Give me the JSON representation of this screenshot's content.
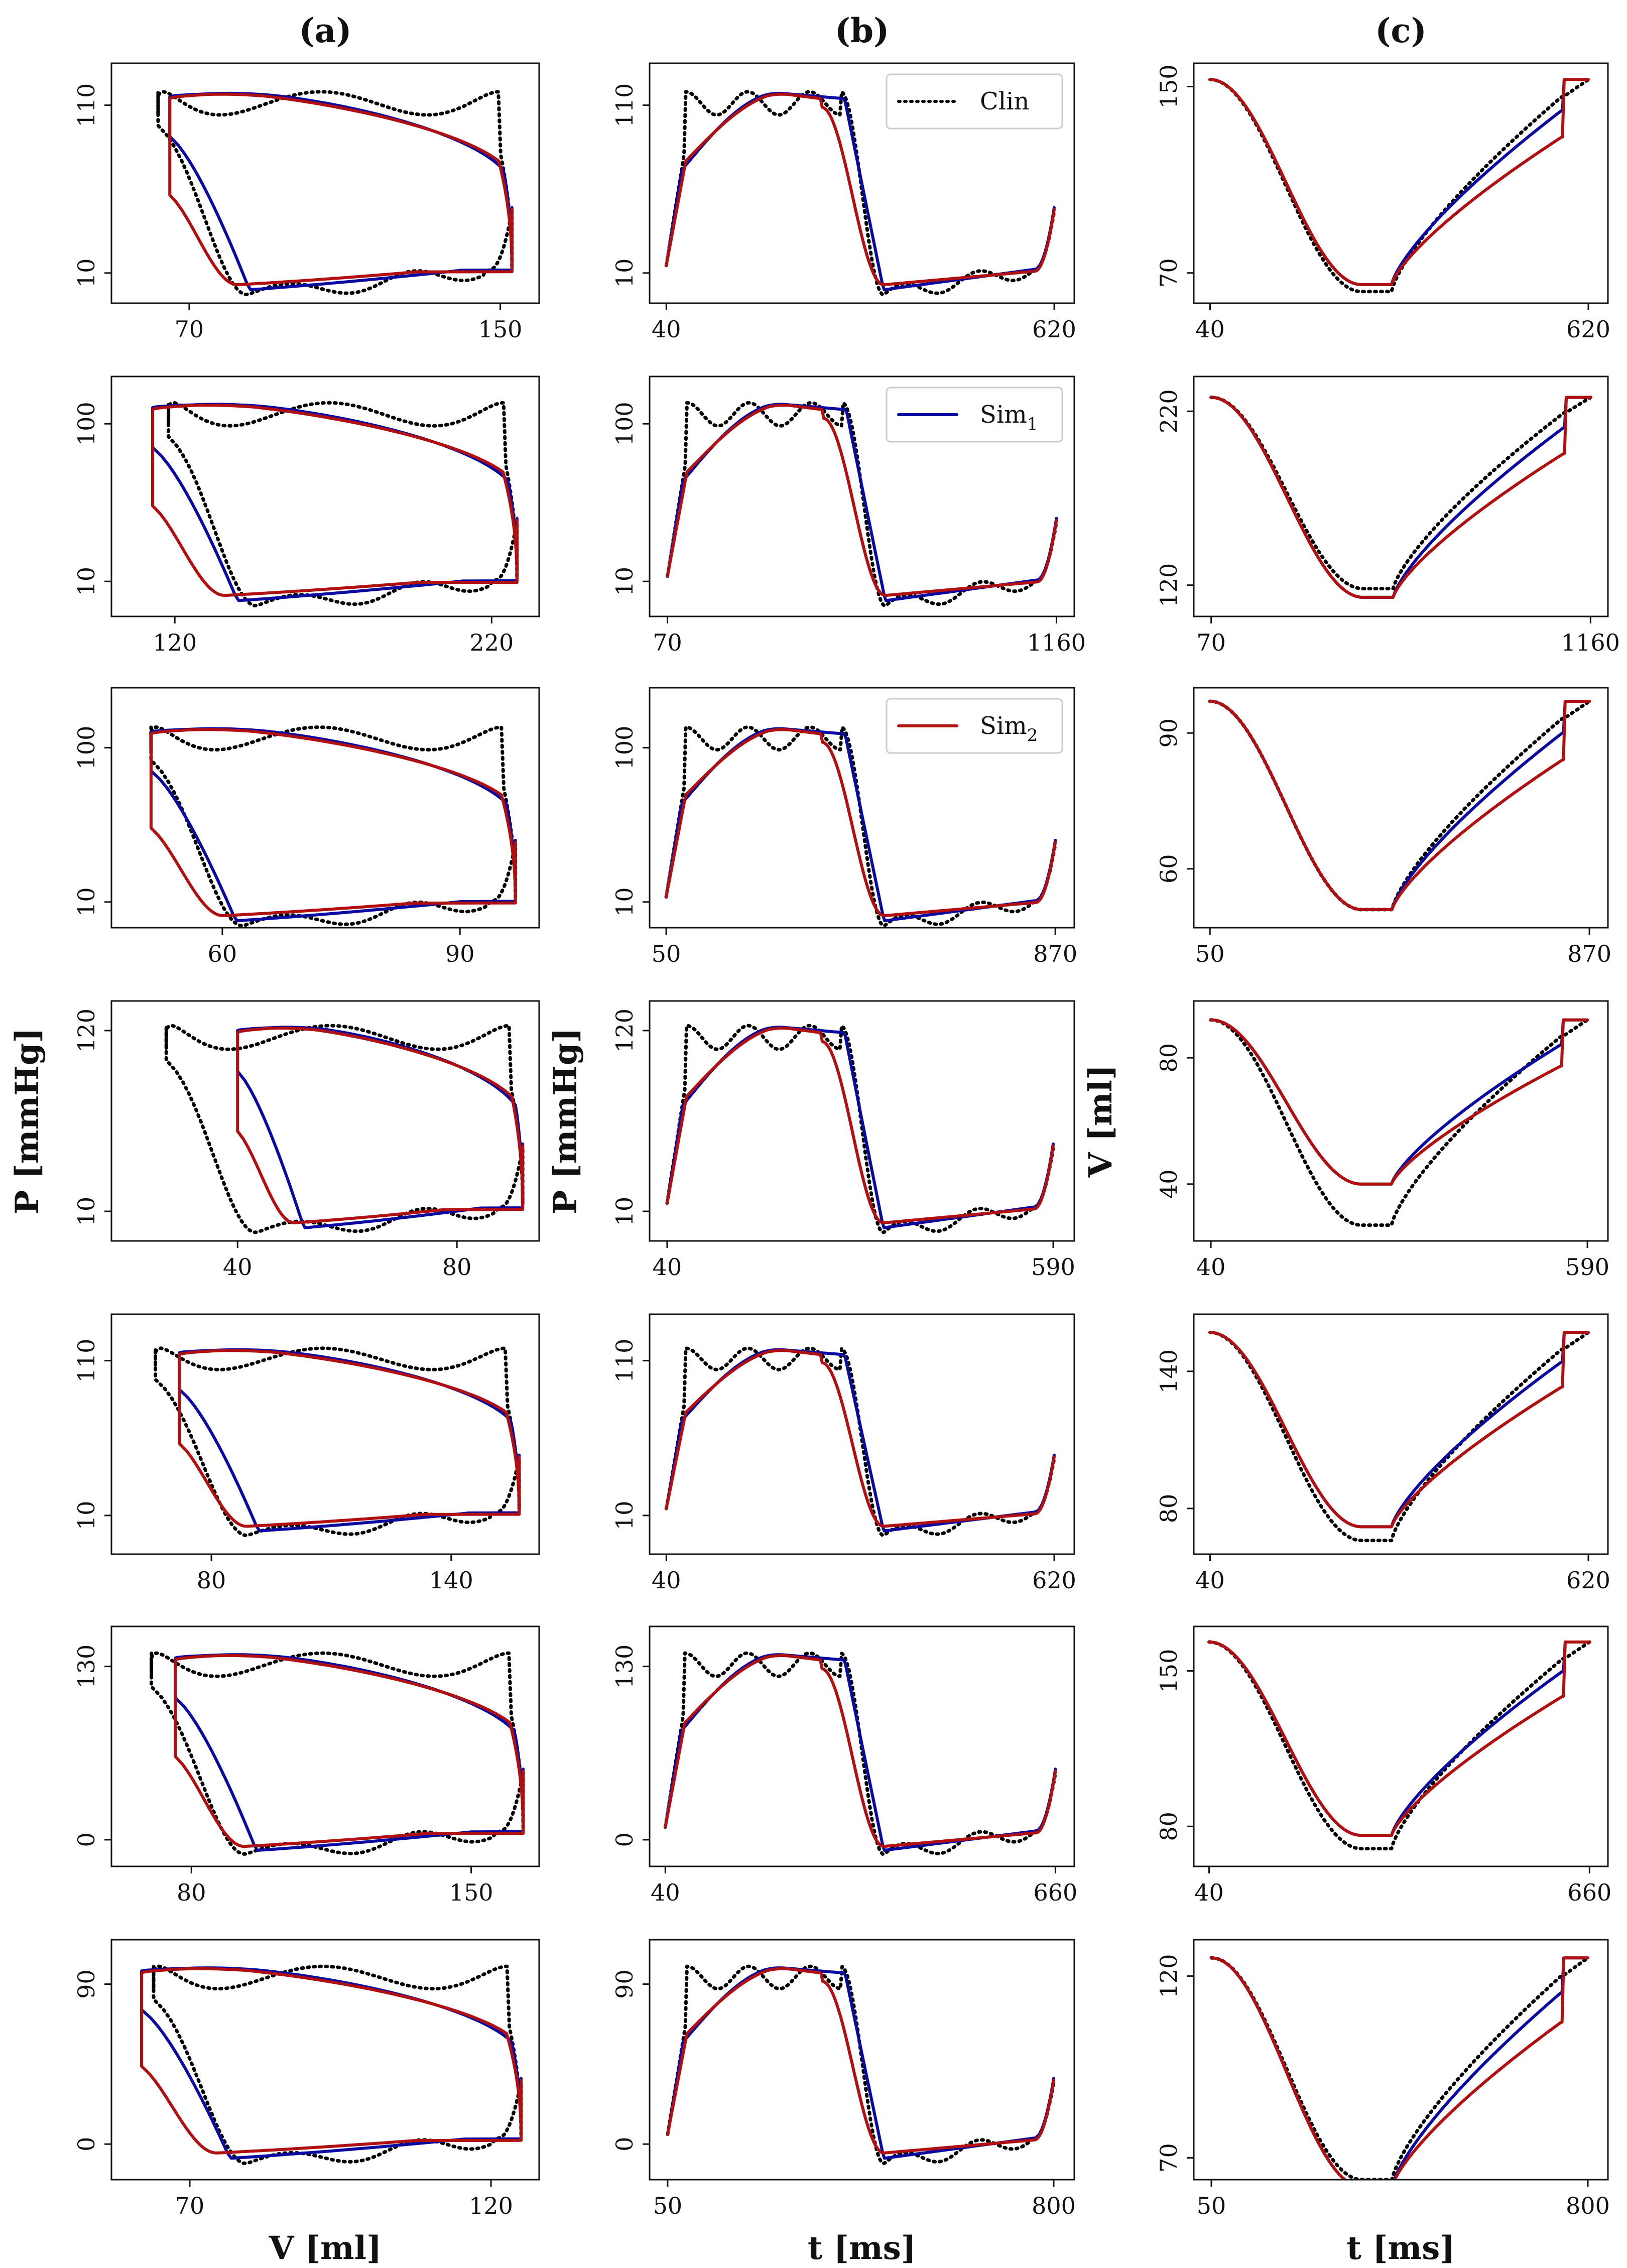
{
  "figure": {
    "columns": [
      {
        "label": "(a)",
        "kind": "pv"
      },
      {
        "label": "(b)",
        "kind": "pressure"
      },
      {
        "label": "(c)",
        "kind": "volume"
      }
    ],
    "bottom_labels": [
      "V [ml]",
      "t [ms]",
      "t [ms]"
    ],
    "ylabel_pressure": "P [mmHg]",
    "ylabel_volume": "V [ml]",
    "legend": [
      {
        "name": "Clin",
        "row": 0,
        "color": "#000000",
        "style": "dotted"
      },
      {
        "name": "Sim",
        "sub": "1",
        "row": 1,
        "color": "#0a0aa0",
        "style": "solid"
      },
      {
        "name": "Sim",
        "sub": "2",
        "row": 2,
        "color": "#b01010",
        "style": "solid"
      }
    ]
  },
  "chart_data": [
    {
      "row": 0,
      "params": {
        "Vmin": 65,
        "Vmax": 153,
        "Pmin": 3,
        "Pmax": 118,
        "T": 620,
        "t0": 40,
        "VminClin": 62
      },
      "pv": {
        "type": "line",
        "xlabel": "V [ml]",
        "ylabel": "P [mmHg]",
        "xlim": [
          50,
          160
        ],
        "ylim": [
          -8,
          135
        ],
        "xticks": [
          70,
          150
        ],
        "yticks": [
          10,
          110
        ]
      },
      "pt": {
        "type": "line",
        "xlabel": "t [ms]",
        "ylabel": "P [mmHg]",
        "xlim": [
          15,
          650
        ],
        "ylim": [
          -8,
          135
        ],
        "xticks": [
          40,
          620
        ],
        "yticks": [
          10,
          110
        ]
      },
      "vt": {
        "type": "line",
        "xlabel": "t [ms]",
        "ylabel": "V [ml]",
        "xlim": [
          15,
          650
        ],
        "ylim": [
          57,
          160
        ],
        "xticks": [
          40,
          620
        ],
        "yticks": [
          70,
          150
        ]
      }
    },
    {
      "row": 1,
      "params": {
        "Vmin": 113,
        "Vmax": 228,
        "Pmin": 2,
        "Pmax": 112,
        "T": 1160,
        "t0": 70,
        "VminClin": 118
      },
      "pv": {
        "type": "line",
        "xlabel": "V [ml]",
        "ylabel": "P [mmHg]",
        "xlim": [
          100,
          235
        ],
        "ylim": [
          -10,
          127
        ],
        "xticks": [
          120,
          220
        ],
        "yticks": [
          10,
          100
        ]
      },
      "pt": {
        "type": "line",
        "xlabel": "t [ms]",
        "ylabel": "P [mmHg]",
        "xlim": [
          20,
          1210
        ],
        "ylim": [
          -10,
          127
        ],
        "xticks": [
          70,
          1160
        ],
        "yticks": [
          10,
          100
        ]
      },
      "vt": {
        "type": "line",
        "xlabel": "t [ms]",
        "ylabel": "V [ml]",
        "xlim": [
          20,
          1210
        ],
        "ylim": [
          102,
          240
        ],
        "xticks": [
          70,
          1160
        ],
        "yticks": [
          120,
          220
        ]
      }
    },
    {
      "row": 2,
      "params": {
        "Vmin": 51,
        "Vmax": 97,
        "Pmin": 2,
        "Pmax": 112,
        "T": 870,
        "t0": 50,
        "VminClin": 51
      },
      "pv": {
        "type": "line",
        "xlabel": "V [ml]",
        "ylabel": "P [mmHg]",
        "xlim": [
          46,
          100
        ],
        "ylim": [
          -5,
          135
        ],
        "xticks": [
          60,
          90
        ],
        "yticks": [
          10,
          100
        ]
      },
      "pt": {
        "type": "line",
        "xlabel": "t [ms]",
        "ylabel": "P [mmHg]",
        "xlim": [
          15,
          910
        ],
        "ylim": [
          -5,
          135
        ],
        "xticks": [
          50,
          870
        ],
        "yticks": [
          10,
          100
        ]
      },
      "vt": {
        "type": "line",
        "xlabel": "t [ms]",
        "ylabel": "V [ml]",
        "xlim": [
          15,
          910
        ],
        "ylim": [
          47,
          100
        ],
        "xticks": [
          50,
          870
        ],
        "yticks": [
          60,
          90
        ]
      }
    },
    {
      "row": 3,
      "params": {
        "Vmin": 40,
        "Vmax": 92,
        "Pmin": 3,
        "Pmax": 123,
        "T": 590,
        "t0": 40,
        "VminClin": 27
      },
      "pv": {
        "type": "line",
        "xlabel": "V [ml]",
        "ylabel": "P [mmHg]",
        "xlim": [
          17,
          95
        ],
        "ylim": [
          -8,
          138
        ],
        "xticks": [
          40,
          80
        ],
        "yticks": [
          10,
          120
        ]
      },
      "pt": {
        "type": "line",
        "xlabel": "t [ms]",
        "ylabel": "P [mmHg]",
        "xlim": [
          15,
          620
        ],
        "ylim": [
          -8,
          138
        ],
        "xticks": [
          40,
          590
        ],
        "yticks": [
          10,
          120
        ]
      },
      "vt": {
        "type": "line",
        "xlabel": "t [ms]",
        "ylabel": "V [ml]",
        "xlim": [
          15,
          620
        ],
        "ylim": [
          22,
          98
        ],
        "xticks": [
          40,
          590
        ],
        "yticks": [
          40,
          80
        ]
      }
    },
    {
      "row": 4,
      "params": {
        "Vmin": 72,
        "Vmax": 157,
        "Pmin": 3,
        "Pmax": 118,
        "T": 620,
        "t0": 40,
        "VminClin": 66
      },
      "pv": {
        "type": "line",
        "xlabel": "V [ml]",
        "ylabel": "P [mmHg]",
        "xlim": [
          55,
          162
        ],
        "ylim": [
          -15,
          140
        ],
        "xticks": [
          80,
          140
        ],
        "yticks": [
          10,
          110
        ]
      },
      "pt": {
        "type": "line",
        "xlabel": "t [ms]",
        "ylabel": "P [mmHg]",
        "xlim": [
          15,
          650
        ],
        "ylim": [
          -15,
          140
        ],
        "xticks": [
          40,
          620
        ],
        "yticks": [
          10,
          110
        ]
      },
      "vt": {
        "type": "line",
        "xlabel": "t [ms]",
        "ylabel": "V [ml]",
        "xlim": [
          15,
          650
        ],
        "ylim": [
          60,
          165
        ],
        "xticks": [
          40,
          620
        ],
        "yticks": [
          80,
          140
        ]
      }
    },
    {
      "row": 5,
      "params": {
        "Vmin": 76,
        "Vmax": 163,
        "Pmin": -5,
        "Pmax": 140,
        "T": 660,
        "t0": 40,
        "VminClin": 70
      },
      "pv": {
        "type": "line",
        "xlabel": "V [ml]",
        "ylabel": "P [mmHg]",
        "xlim": [
          60,
          167
        ],
        "ylim": [
          -20,
          160
        ],
        "xticks": [
          80,
          150
        ],
        "yticks": [
          0,
          130
        ]
      },
      "pt": {
        "type": "line",
        "xlabel": "t [ms]",
        "ylabel": "P [mmHg]",
        "xlim": [
          15,
          690
        ],
        "ylim": [
          -20,
          160
        ],
        "xticks": [
          40,
          660
        ],
        "yticks": [
          0,
          130
        ]
      },
      "vt": {
        "type": "line",
        "xlabel": "t [ms]",
        "ylabel": "V [ml]",
        "xlim": [
          15,
          690
        ],
        "ylim": [
          62,
          170
        ],
        "xticks": [
          40,
          660
        ],
        "yticks": [
          80,
          150
        ]
      }
    },
    {
      "row": 6,
      "params": {
        "Vmin": 62,
        "Vmax": 125,
        "Pmin": -5,
        "Pmax": 100,
        "T": 800,
        "t0": 50,
        "VminClin": 64
      },
      "pv": {
        "type": "line",
        "xlabel": "V [ml]",
        "ylabel": "P [mmHg]",
        "xlim": [
          57,
          128
        ],
        "ylim": [
          -20,
          115
        ],
        "xticks": [
          70,
          120
        ],
        "yticks": [
          0,
          90
        ]
      },
      "pt": {
        "type": "line",
        "xlabel": "t [ms]",
        "ylabel": "P [mmHg]",
        "xlim": [
          15,
          840
        ],
        "ylim": [
          -20,
          115
        ],
        "xticks": [
          50,
          800
        ],
        "yticks": [
          0,
          90
        ]
      },
      "vt": {
        "type": "line",
        "xlabel": "t [ms]",
        "ylabel": "V [ml]",
        "xlim": [
          15,
          840
        ],
        "ylim": [
          64,
          130
        ],
        "xticks": [
          50,
          800
        ],
        "yticks": [
          70,
          120
        ]
      }
    }
  ]
}
